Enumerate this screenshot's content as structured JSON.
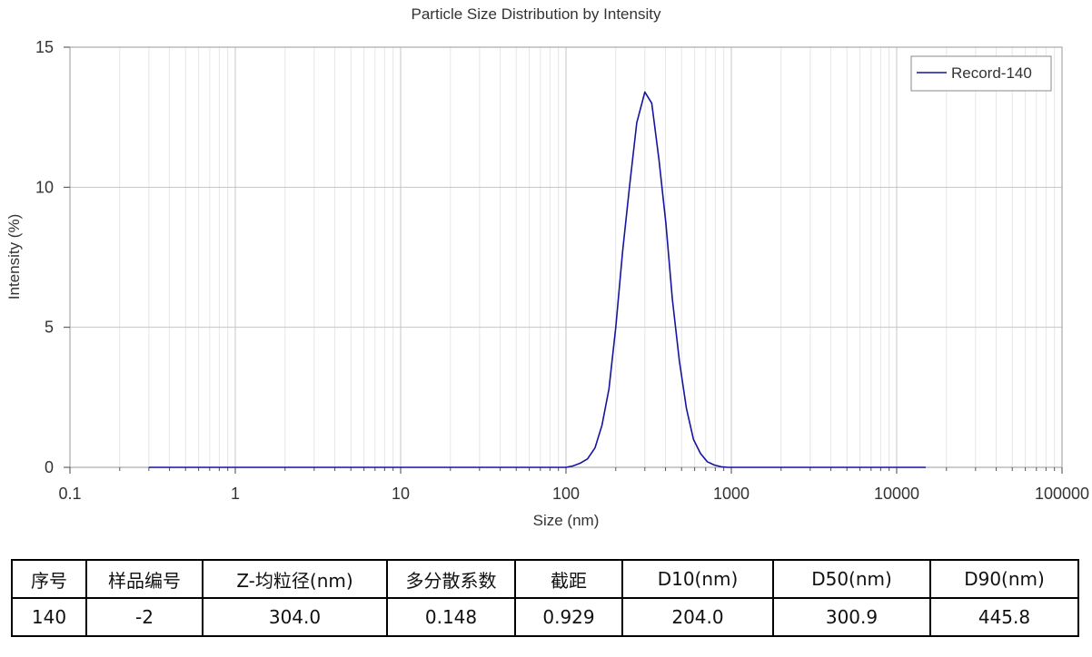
{
  "chart_data": {
    "type": "line",
    "title": "Particle Size Distribution by Intensity",
    "xlabel": "Size (nm)",
    "ylabel": "Intensity (%)",
    "x_scale": "log",
    "xlim": [
      0.1,
      100000
    ],
    "ylim": [
      0,
      15
    ],
    "x_ticks": [
      0.1,
      1,
      10,
      100,
      1000,
      10000,
      100000
    ],
    "x_tick_labels": [
      "0.1",
      "1",
      "10",
      "100",
      "1000",
      "10000",
      "100000"
    ],
    "y_ticks": [
      0,
      5,
      10,
      15
    ],
    "y_tick_labels": [
      "0",
      "5",
      "10",
      "15"
    ],
    "grid": true,
    "legend_position": "top-right",
    "series": [
      {
        "name": "Record-140",
        "color": "#1414a0",
        "x": [
          0.3,
          10,
          100,
          110,
          122,
          135,
          150,
          165,
          182,
          200,
          220,
          243,
          268,
          300,
          330,
          365,
          402,
          440,
          485,
          535,
          590,
          650,
          715,
          790,
          870,
          960,
          2000,
          15000
        ],
        "y": [
          0,
          0,
          0,
          0.05,
          0.15,
          0.3,
          0.7,
          1.5,
          2.8,
          5.0,
          7.7,
          10.1,
          12.3,
          13.4,
          13.0,
          11.0,
          8.7,
          6.0,
          3.8,
          2.1,
          1.0,
          0.5,
          0.2,
          0.08,
          0.02,
          0,
          0,
          0
        ]
      }
    ]
  },
  "table": {
    "headers": [
      "序号",
      "样品编号",
      "Z-均粒径(nm)",
      "多分散系数",
      "截距",
      "D10(nm)",
      "D50(nm)",
      "D90(nm)"
    ],
    "row": [
      "140",
      "-2",
      "304.0",
      "0.148",
      "0.929",
      "204.0",
      "300.9",
      "445.8"
    ]
  }
}
